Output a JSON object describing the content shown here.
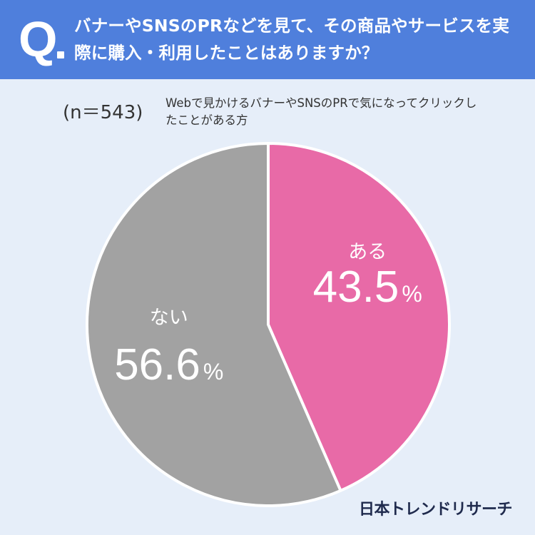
{
  "header": {
    "q_label": "Q",
    "question": "バナーやSNSのPRなどを見て、その商品やサービスを実際に購入・利用したことはありますか？"
  },
  "sample_size": "(n＝543)",
  "description": "Webで見かけるバナーやSNSのPRで気になってクリックしたことがある方",
  "brand": "日本トレンドリサーチ",
  "colors": {
    "header": "#4f7fdc",
    "background": "#e6eef9",
    "yes": "#e86aa7",
    "no": "#a2a2a2"
  },
  "chart_data": {
    "type": "pie",
    "title": "",
    "slices": [
      {
        "label": "ある",
        "value": 43.5,
        "display": "43.5",
        "unit": "%",
        "color": "#e86aa7"
      },
      {
        "label": "ない",
        "value": 56.6,
        "display": "56.6",
        "unit": "%",
        "color": "#a2a2a2"
      }
    ],
    "start_angle_deg": 0,
    "direction": "clockwise"
  }
}
